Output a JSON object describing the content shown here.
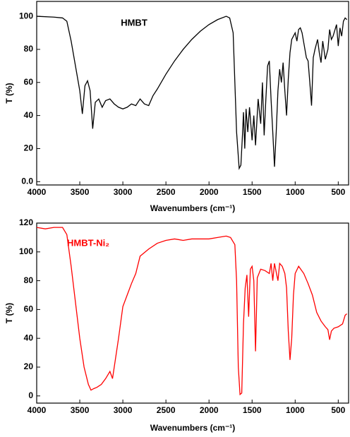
{
  "chart_data": [
    {
      "type": "line",
      "annotation": "HMBT",
      "x_label": "Wavenumbers (cm⁻¹)",
      "y_label": "T (%)",
      "xlim": [
        4000,
        380
      ],
      "xticks": [
        4000,
        3500,
        3000,
        2500,
        2000,
        1500,
        1000,
        500
      ],
      "ylim": [
        -2,
        109
      ],
      "yticks": [
        {
          "value": 0,
          "label": "0.0"
        },
        20,
        40,
        60,
        80,
        100
      ],
      "grid": false,
      "x": [
        4000,
        3800,
        3700,
        3650,
        3600,
        3550,
        3500,
        3470,
        3440,
        3410,
        3380,
        3350,
        3320,
        3280,
        3240,
        3200,
        3150,
        3100,
        3050,
        3000,
        2950,
        2900,
        2850,
        2800,
        2750,
        2700,
        2650,
        2600,
        2500,
        2400,
        2300,
        2200,
        2100,
        2000,
        1900,
        1800,
        1760,
        1720,
        1700,
        1680,
        1650,
        1630,
        1610,
        1600,
        1585,
        1570,
        1550,
        1530,
        1500,
        1480,
        1460,
        1430,
        1400,
        1380,
        1360,
        1340,
        1320,
        1300,
        1280,
        1260,
        1240,
        1220,
        1200,
        1180,
        1160,
        1140,
        1120,
        1100,
        1080,
        1060,
        1040,
        1000,
        980,
        960,
        940,
        920,
        900,
        870,
        850,
        830,
        810,
        790,
        770,
        740,
        720,
        700,
        680,
        650,
        620,
        600,
        580,
        560,
        520,
        500,
        480,
        460,
        440,
        420,
        400
      ],
      "series": [
        {
          "color": "#000000",
          "values": [
            100,
            99.5,
            99,
            97,
            85,
            70,
            55,
            41,
            58,
            61,
            55,
            32,
            48,
            50,
            45,
            49,
            50,
            47,
            45,
            44,
            45,
            47,
            46,
            50,
            47,
            46,
            52,
            56,
            65,
            73,
            80,
            86,
            91,
            95,
            98,
            100,
            99,
            90,
            60,
            30,
            8,
            10,
            30,
            42,
            20,
            44,
            30,
            45,
            25,
            40,
            22,
            50,
            35,
            60,
            28,
            50,
            70,
            73,
            50,
            30,
            9,
            30,
            55,
            68,
            60,
            72,
            55,
            40,
            62,
            78,
            86,
            90,
            85,
            92,
            93,
            90,
            84,
            75,
            73,
            60,
            46,
            75,
            80,
            86,
            78,
            72,
            85,
            74,
            80,
            92,
            86,
            88,
            95,
            82,
            93,
            88,
            97,
            99,
            98
          ]
        }
      ]
    },
    {
      "type": "line",
      "annotation": "HMBT-Ni₂",
      "x_label": "Wavenumbers (cm⁻¹)",
      "y_label": "T (%)",
      "xlim": [
        4000,
        380
      ],
      "xticks": [
        4000,
        3500,
        3000,
        2500,
        2000,
        1500,
        1000,
        500
      ],
      "ylim": [
        -5,
        120
      ],
      "yticks": [
        0,
        20,
        40,
        60,
        80,
        100,
        120
      ],
      "grid": false,
      "x": [
        4000,
        3900,
        3800,
        3700,
        3650,
        3600,
        3550,
        3500,
        3450,
        3400,
        3370,
        3340,
        3300,
        3250,
        3200,
        3150,
        3120,
        3100,
        3050,
        3000,
        2950,
        2900,
        2850,
        2800,
        2700,
        2600,
        2500,
        2400,
        2300,
        2200,
        2100,
        2000,
        1900,
        1800,
        1750,
        1700,
        1680,
        1660,
        1640,
        1620,
        1600,
        1580,
        1560,
        1540,
        1520,
        1500,
        1480,
        1460,
        1440,
        1400,
        1350,
        1300,
        1280,
        1260,
        1240,
        1200,
        1180,
        1150,
        1120,
        1100,
        1080,
        1060,
        1040,
        1020,
        1000,
        960,
        900,
        850,
        800,
        750,
        700,
        650,
        620,
        600,
        580,
        550,
        500,
        450,
        420,
        400
      ],
      "series": [
        {
          "color": "#ff0000",
          "values": [
            117,
            116,
            117,
            117,
            112,
            90,
            65,
            40,
            20,
            8,
            4,
            5,
            6,
            8,
            12,
            17,
            12,
            20,
            40,
            62,
            70,
            78,
            85,
            97,
            102,
            106,
            108,
            109,
            108,
            109,
            109,
            109,
            110,
            111,
            110,
            105,
            80,
            20,
            1,
            2,
            50,
            75,
            84,
            55,
            88,
            90,
            80,
            31,
            82,
            88,
            87,
            85,
            92,
            80,
            92,
            80,
            92,
            90,
            85,
            75,
            45,
            25,
            40,
            70,
            85,
            90,
            85,
            78,
            70,
            58,
            52,
            48,
            46,
            39,
            45,
            47,
            48,
            50,
            56,
            57
          ]
        }
      ]
    }
  ]
}
